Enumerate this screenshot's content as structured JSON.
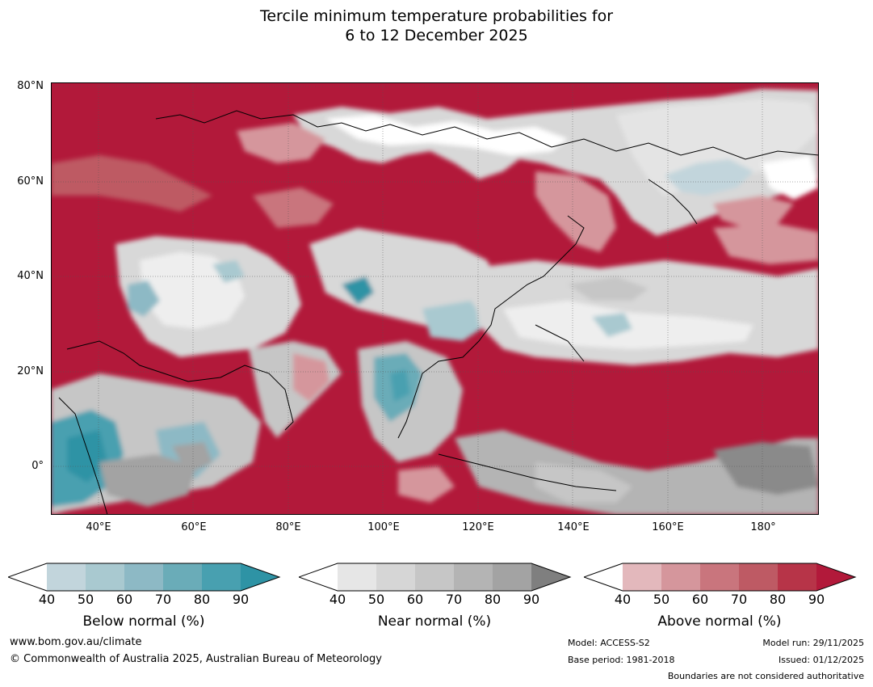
{
  "title": {
    "line1": "Tercile minimum temperature probabilities for",
    "line2": "6 to 12 December 2025"
  },
  "map": {
    "lat_labels": [
      "80°N",
      "60°N",
      "40°N",
      "20°N",
      "0°"
    ],
    "lon_labels": [
      "40°E",
      "60°E",
      "80°E",
      "100°E",
      "120°E",
      "140°E",
      "160°E",
      "180°"
    ]
  },
  "legends": {
    "below": {
      "title": "Below normal (%)",
      "ticks": [
        "40",
        "50",
        "60",
        "70",
        "80",
        "90"
      ],
      "colors": [
        "#ffffff",
        "#c2d5dc",
        "#a9c9d0",
        "#8db9c5",
        "#6aacb8",
        "#48a0b0",
        "#2e93a5"
      ]
    },
    "near": {
      "title": "Near normal (%)",
      "ticks": [
        "40",
        "50",
        "60",
        "70",
        "80",
        "90"
      ],
      "colors": [
        "#ffffff",
        "#e6e6e6",
        "#d6d6d6",
        "#c6c6c6",
        "#b4b4b4",
        "#a3a3a3",
        "#7f7f7f"
      ]
    },
    "above": {
      "title": "Above normal (%)",
      "ticks": [
        "40",
        "50",
        "60",
        "70",
        "80",
        "90"
      ],
      "colors": [
        "#ffffff",
        "#e3b8bc",
        "#d5969c",
        "#c9757d",
        "#be5a64",
        "#b73448",
        "#b2193a"
      ]
    }
  },
  "footer": {
    "website": "www.bom.gov.au/climate",
    "copyright": "© Commonwealth of Australia 2025, Australian Bureau of Meteorology",
    "model": "Model: ACCESS-S2",
    "base_period": "Base period: 1981-2018",
    "model_run": "Model run: 29/11/2025",
    "issued": "Issued: 01/12/2025",
    "disclaimer": "Boundaries are not considered authoritative"
  }
}
